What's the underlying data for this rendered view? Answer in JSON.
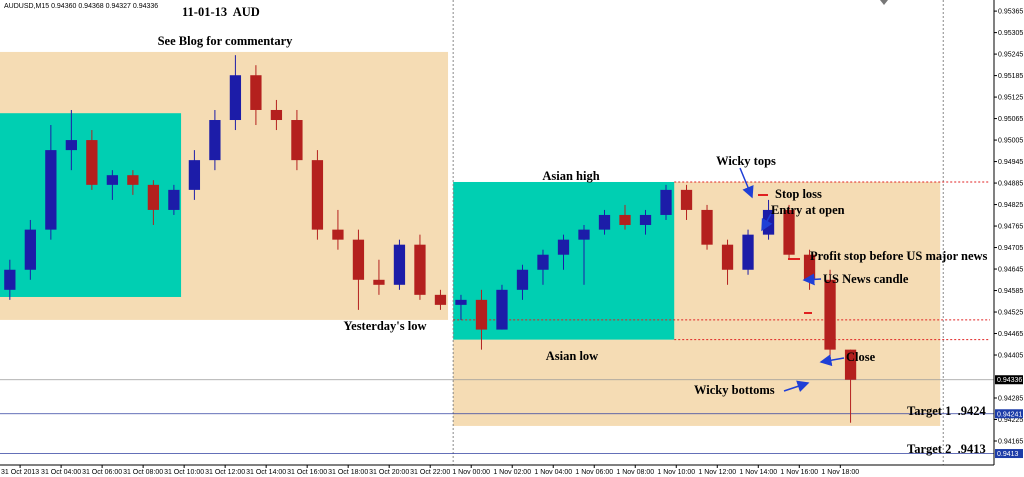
{
  "chart_data": {
    "type": "candlestick",
    "symbol": "AUDUSD,M15",
    "header_values": [
      "0.94360",
      "0.94368",
      "0.94327",
      "0.94336"
    ],
    "title": "11-01-13  AUD",
    "annotations": [
      "See Blog for commentary",
      "Asian high",
      "Yesterday's low",
      "Asian low",
      "Wicky tops",
      "Stop loss",
      "Entry at open",
      "Profit stop before US major news",
      "US News candle",
      "Close",
      "Wicky bottoms",
      "Target 1  .9424",
      "Target 2  .9413"
    ],
    "x": [
      1,
      2,
      3,
      4,
      5,
      6,
      7,
      8,
      9,
      10,
      11,
      12,
      13,
      14,
      15,
      16,
      17,
      18,
      19,
      20,
      21,
      22,
      23,
      24,
      25,
      26,
      27,
      28,
      29,
      30,
      31,
      32,
      33,
      34,
      35,
      36,
      37,
      38,
      39,
      40,
      41,
      42
    ],
    "open": [
      0.94587,
      0.94643,
      0.94755,
      0.94977,
      0.95005,
      0.9488,
      0.94907,
      0.9488,
      0.9481,
      0.94866,
      0.94949,
      0.95061,
      0.95186,
      0.95089,
      0.95061,
      0.94949,
      0.94755,
      0.94727,
      0.94615,
      0.94601,
      0.94713,
      0.94573,
      0.94545,
      0.94559,
      0.94476,
      0.94587,
      0.94643,
      0.94685,
      0.94727,
      0.94755,
      0.94796,
      0.94768,
      0.94796,
      0.94866,
      0.9481,
      0.94713,
      0.94643,
      0.94741,
      0.9481,
      0.94685,
      0.94615,
      0.9442
    ],
    "high": [
      0.94671,
      0.94782,
      0.95047,
      0.95089,
      0.95033,
      0.94921,
      0.94921,
      0.94893,
      0.9488,
      0.94977,
      0.95089,
      0.95242,
      0.95214,
      0.95117,
      0.95089,
      0.94977,
      0.9481,
      0.94755,
      0.94671,
      0.94727,
      0.94741,
      0.94587,
      0.94573,
      0.94587,
      0.94601,
      0.94657,
      0.94699,
      0.94741,
      0.94768,
      0.9481,
      0.94824,
      0.9481,
      0.9488,
      0.9488,
      0.94824,
      0.94727,
      0.94755,
      0.94838,
      0.94824,
      0.94699,
      0.94643,
      0.9442
    ],
    "low": [
      0.94559,
      0.94615,
      0.94727,
      0.94921,
      0.94866,
      0.94838,
      0.94852,
      0.94768,
      0.94796,
      0.94838,
      0.94921,
      0.95033,
      0.95047,
      0.95033,
      0.94921,
      0.94727,
      0.94699,
      0.94531,
      0.94573,
      0.94587,
      0.94559,
      0.94531,
      0.94503,
      0.9442,
      0.94476,
      0.94559,
      0.94601,
      0.94643,
      0.94601,
      0.94741,
      0.94755,
      0.94741,
      0.94782,
      0.94782,
      0.94699,
      0.94601,
      0.94629,
      0.94727,
      0.94671,
      0.94587,
      0.94378,
      0.94216
    ],
    "close": [
      0.94643,
      0.94755,
      0.94977,
      0.95005,
      0.9488,
      0.94907,
      0.9488,
      0.9481,
      0.94866,
      0.94949,
      0.95061,
      0.95186,
      0.95089,
      0.95061,
      0.94949,
      0.94755,
      0.94727,
      0.94615,
      0.94601,
      0.94713,
      0.94573,
      0.94545,
      0.94559,
      0.94476,
      0.94587,
      0.94643,
      0.94685,
      0.94727,
      0.94755,
      0.94796,
      0.94768,
      0.94796,
      0.94866,
      0.9481,
      0.94713,
      0.94643,
      0.94741,
      0.9481,
      0.94685,
      0.94615,
      0.9442,
      0.94336
    ],
    "up_color": "#1c1ca8",
    "down_color": "#b4201e",
    "xlim": [
      1.02,
      49.3
    ],
    "ylim": [
      0.94098,
      0.95396
    ],
    "yticks": [
      0.95365,
      0.95305,
      0.95245,
      0.95185,
      0.95125,
      0.95065,
      0.95005,
      0.94945,
      0.94885,
      0.94825,
      0.94765,
      0.94705,
      0.94645,
      0.94585,
      0.94525,
      0.94465,
      0.94405,
      0.94285,
      0.94225,
      0.94165
    ],
    "xticks": [
      {
        "value": 2,
        "label": "31 Oct 2013"
      },
      {
        "value": 4,
        "label": "31 Oct 04:00"
      },
      {
        "value": 6,
        "label": "31 Oct 06:00"
      },
      {
        "value": 8,
        "label": "31 Oct 08:00"
      },
      {
        "value": 10,
        "label": "31 Oct 10:00"
      },
      {
        "value": 12,
        "label": "31 Oct 12:00"
      },
      {
        "value": 14,
        "label": "31 Oct 14:00"
      },
      {
        "value": 16,
        "label": "31 Oct 16:00"
      },
      {
        "value": 18,
        "label": "31 Oct 18:00"
      },
      {
        "value": 20,
        "label": "31 Oct 20:00"
      },
      {
        "value": 22,
        "label": "31 Oct 22:00"
      },
      {
        "value": 24,
        "label": "1 Nov 00:00"
      },
      {
        "value": 26,
        "label": "1 Nov 02:00"
      },
      {
        "value": 28,
        "label": "1 Nov 04:00"
      },
      {
        "value": 30,
        "label": "1 Nov 06:00"
      },
      {
        "value": 32,
        "label": "1 Nov 08:00"
      },
      {
        "value": 34,
        "label": "1 Nov 10:00"
      },
      {
        "value": 36,
        "label": "1 Nov 12:00"
      },
      {
        "value": 38,
        "label": "1 Nov 14:00"
      },
      {
        "value": 40,
        "label": "1 Nov 16:00"
      },
      {
        "value": 42,
        "label": "1 Nov 18:00"
      }
    ],
    "zones": [
      {
        "x": [
          1.02,
          22.87
        ],
        "y": [
          0.94503,
          0.95251
        ],
        "color": "#f5dcb4"
      },
      {
        "x": [
          23.12,
          46.87
        ],
        "y": [
          0.94207,
          0.94888
        ],
        "color": "#f5dcb4"
      },
      {
        "x": [
          1.02,
          9.85
        ],
        "y": [
          0.94567,
          0.9508
        ],
        "color": "#00cfb2"
      },
      {
        "x": [
          23.12,
          33.9
        ],
        "y": [
          0.94448,
          0.94888
        ],
        "color": "#00cfb2"
      }
    ],
    "levels": [
      {
        "y": 0.94888,
        "x": [
          33.9,
          49.3
        ],
        "color": "#e02020"
      },
      {
        "y": 0.94503,
        "x": [
          23.12,
          49.3
        ],
        "color": "#e02020"
      },
      {
        "y": 0.94448,
        "x": [
          33.9,
          49.3
        ],
        "color": "#e02020"
      }
    ],
    "separators": [
      23.12,
      47.02
    ],
    "price_lines": [
      {
        "value": 0.94336,
        "color": "#999999",
        "tag_color": "#000000"
      },
      {
        "value": 0.94241,
        "color": "#3040a0",
        "tag_color": "#1c3ca8"
      },
      {
        "value": 0.9413,
        "color": "#3040a0",
        "tag_color": "#1c3ca8"
      }
    ]
  }
}
